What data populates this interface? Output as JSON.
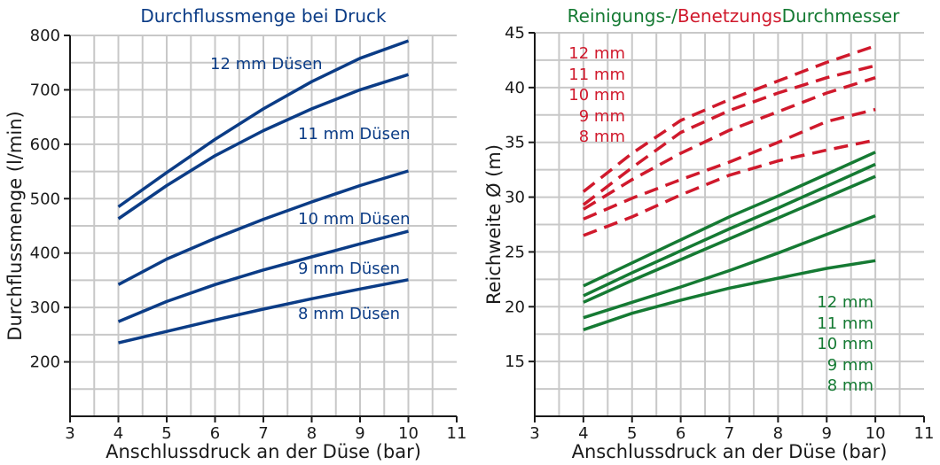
{
  "colors": {
    "blue": "#0b3c86",
    "green": "#157a33",
    "red": "#d0192c",
    "grid": "#c8c8c8",
    "axis": "#1a1a1a"
  },
  "chart_data": [
    {
      "type": "line",
      "title": "Durchflussmenge bei Druck",
      "xlabel": "Anschlussdruck an der Düse (bar)",
      "ylabel": "Durchflussmenge (l/min)",
      "xlim": [
        3,
        11
      ],
      "ylim": [
        100,
        800
      ],
      "xticks": [
        3,
        4,
        5,
        6,
        7,
        8,
        9,
        10,
        11
      ],
      "yticks": [
        200,
        300,
        400,
        500,
        600,
        700,
        800
      ],
      "grid": true,
      "series": [
        {
          "name": "12 mm Düsen",
          "color": "blue",
          "dash": false,
          "x": [
            4,
            5,
            6,
            7,
            8,
            9,
            10
          ],
          "y": [
            485,
            548,
            609,
            665,
            715,
            758,
            790
          ]
        },
        {
          "name": "11 mm Düsen",
          "color": "blue",
          "dash": false,
          "x": [
            4,
            5,
            6,
            7,
            8,
            9,
            10
          ],
          "y": [
            463,
            524,
            579,
            625,
            665,
            700,
            728
          ]
        },
        {
          "name": "10 mm Düsen",
          "color": "blue",
          "dash": false,
          "x": [
            4,
            5,
            6,
            7,
            8,
            9,
            10
          ],
          "y": [
            342,
            389,
            427,
            462,
            494,
            524,
            551
          ]
        },
        {
          "name": "9 mm Düsen",
          "color": "blue",
          "dash": false,
          "x": [
            4,
            5,
            6,
            7,
            8,
            9,
            10
          ],
          "y": [
            274,
            311,
            342,
            369,
            393,
            417,
            440
          ]
        },
        {
          "name": "8 mm Düsen",
          "color": "blue",
          "dash": false,
          "x": [
            4,
            5,
            6,
            7,
            8,
            9,
            10
          ],
          "y": [
            235,
            256,
            277,
            297,
            316,
            334,
            351
          ]
        }
      ],
      "labels": [
        {
          "text": "12 mm Düsen",
          "color": "blue"
        },
        {
          "text": "11 mm Düsen",
          "color": "blue"
        },
        {
          "text": "10 mm Düsen",
          "color": "blue"
        },
        {
          "text": "9 mm Düsen",
          "color": "blue"
        },
        {
          "text": "8 mm Düsen",
          "color": "blue"
        }
      ]
    },
    {
      "type": "line",
      "title_parts": [
        {
          "text": "Reinigungs-/",
          "color": "green"
        },
        {
          "text": "Benetzungs",
          "color": "red"
        },
        {
          "text": "Durchmesser",
          "color": "green"
        }
      ],
      "xlabel": "Anschlussdruck an der Düse (bar)",
      "ylabel": "Reichweite Ø (m)",
      "xlim": [
        3,
        11
      ],
      "ylim": [
        10,
        45
      ],
      "xticks": [
        3,
        4,
        5,
        6,
        7,
        8,
        9,
        10,
        11
      ],
      "yticks": [
        15,
        20,
        25,
        30,
        35,
        40,
        45
      ],
      "grid": true,
      "series": [
        {
          "name": "12 mm",
          "group": "Reinigungs",
          "color": "green",
          "dash": false,
          "x": [
            4,
            5,
            6,
            7,
            8,
            9,
            10
          ],
          "y": [
            21.9,
            24.0,
            26.1,
            28.2,
            30.1,
            32.1,
            34.1
          ]
        },
        {
          "name": "11 mm",
          "group": "Reinigungs",
          "color": "green",
          "dash": false,
          "x": [
            4,
            5,
            6,
            7,
            8,
            9,
            10
          ],
          "y": [
            21.0,
            23.1,
            25.1,
            27.1,
            29.0,
            31.0,
            33.0
          ]
        },
        {
          "name": "10 mm",
          "group": "Reinigungs",
          "color": "green",
          "dash": false,
          "x": [
            4,
            5,
            6,
            7,
            8,
            9,
            10
          ],
          "y": [
            20.4,
            22.4,
            24.3,
            26.2,
            28.1,
            30.0,
            31.9
          ]
        },
        {
          "name": "9 mm",
          "group": "Reinigungs",
          "color": "green",
          "dash": false,
          "x": [
            4,
            5,
            6,
            7,
            8,
            9,
            10
          ],
          "y": [
            19.0,
            20.4,
            21.8,
            23.3,
            24.9,
            26.6,
            28.3
          ]
        },
        {
          "name": "8 mm",
          "group": "Reinigungs",
          "color": "green",
          "dash": false,
          "x": [
            4,
            5,
            6,
            7,
            8,
            9,
            10
          ],
          "y": [
            17.9,
            19.4,
            20.6,
            21.7,
            22.6,
            23.5,
            24.2
          ]
        },
        {
          "name": "12 mm",
          "group": "Benetzungs",
          "color": "red",
          "dash": true,
          "x": [
            4,
            5,
            6,
            7,
            8,
            9,
            10
          ],
          "y": [
            30.5,
            34.0,
            37.0,
            38.9,
            40.6,
            42.3,
            43.8
          ]
        },
        {
          "name": "11 mm",
          "group": "Benetzungs",
          "color": "red",
          "dash": true,
          "x": [
            4,
            5,
            6,
            7,
            8,
            9,
            10
          ],
          "y": [
            29.3,
            32.7,
            35.9,
            37.9,
            39.5,
            40.9,
            42.0
          ]
        },
        {
          "name": "10 mm",
          "group": "Benetzungs",
          "color": "red",
          "dash": true,
          "x": [
            4,
            5,
            6,
            7,
            8,
            9,
            10
          ],
          "y": [
            28.9,
            31.6,
            34.0,
            36.1,
            37.8,
            39.5,
            40.9
          ]
        },
        {
          "name": "9 mm",
          "group": "Benetzungs",
          "color": "red",
          "dash": true,
          "x": [
            4,
            5,
            6,
            7,
            8,
            9,
            10
          ],
          "y": [
            28.0,
            29.9,
            31.6,
            33.2,
            35.0,
            36.9,
            38.0
          ]
        },
        {
          "name": "8 mm",
          "group": "Benetzungs",
          "color": "red",
          "dash": true,
          "x": [
            4,
            5,
            6,
            7,
            8,
            9,
            10
          ],
          "y": [
            26.5,
            28.2,
            30.2,
            32.0,
            33.3,
            34.3,
            35.2
          ]
        }
      ],
      "labels": [
        {
          "text": "12 mm",
          "color": "red"
        },
        {
          "text": "11 mm",
          "color": "red"
        },
        {
          "text": "10 mm",
          "color": "red"
        },
        {
          "text": "9 mm",
          "color": "red"
        },
        {
          "text": "8 mm",
          "color": "red"
        },
        {
          "text": "12 mm",
          "color": "green"
        },
        {
          "text": "11 mm",
          "color": "green"
        },
        {
          "text": "10 mm",
          "color": "green"
        },
        {
          "text": "9 mm",
          "color": "green"
        },
        {
          "text": "8 mm",
          "color": "green"
        }
      ]
    }
  ]
}
